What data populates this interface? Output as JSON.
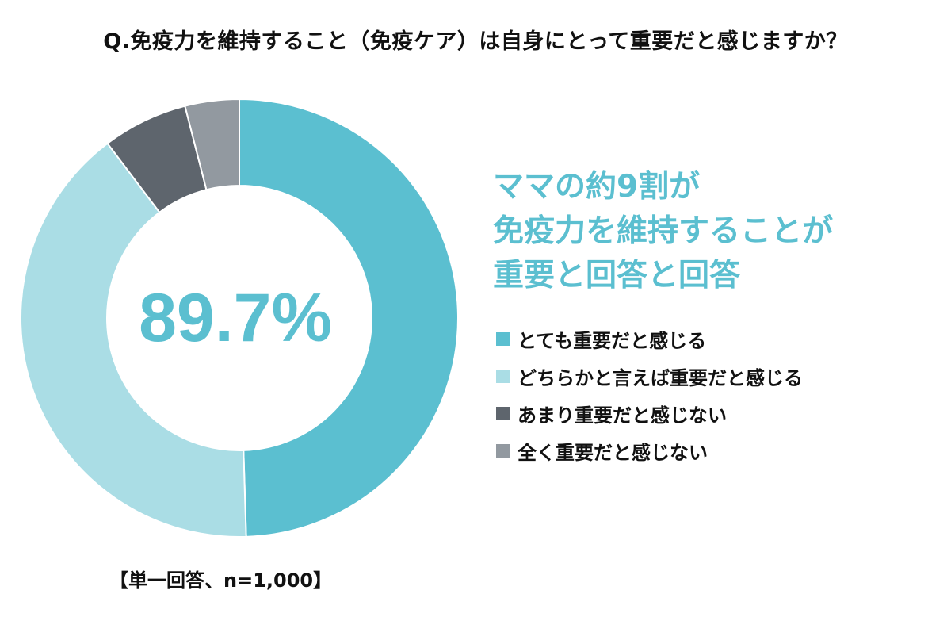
{
  "question": "Q.免疫力を維持すること（免疫ケア）は自身にとって重要だと感じますか？",
  "headline": [
    "ママの約9割が",
    "免疫力を維持することが",
    "重要と回答と回答"
  ],
  "footnote": "【単一回答、n=1,000】",
  "chart_data": {
    "type": "pie",
    "style": "donut",
    "title": "Q.免疫力を維持すること（免疫ケア）は自身にとって重要だと感じますか？",
    "center_label": "89.7%",
    "categories": [
      "とても重要だと感じる",
      "どちらかと言えば重要だと感じる",
      "あまり重要だと感じない",
      "全く重要だと感じない"
    ],
    "values": [
      49.5,
      40.2,
      6.3,
      4.0
    ],
    "colors": [
      "#5bbfd0",
      "#aadde5",
      "#5e656d",
      "#9299a0"
    ],
    "legend_position": "right"
  }
}
